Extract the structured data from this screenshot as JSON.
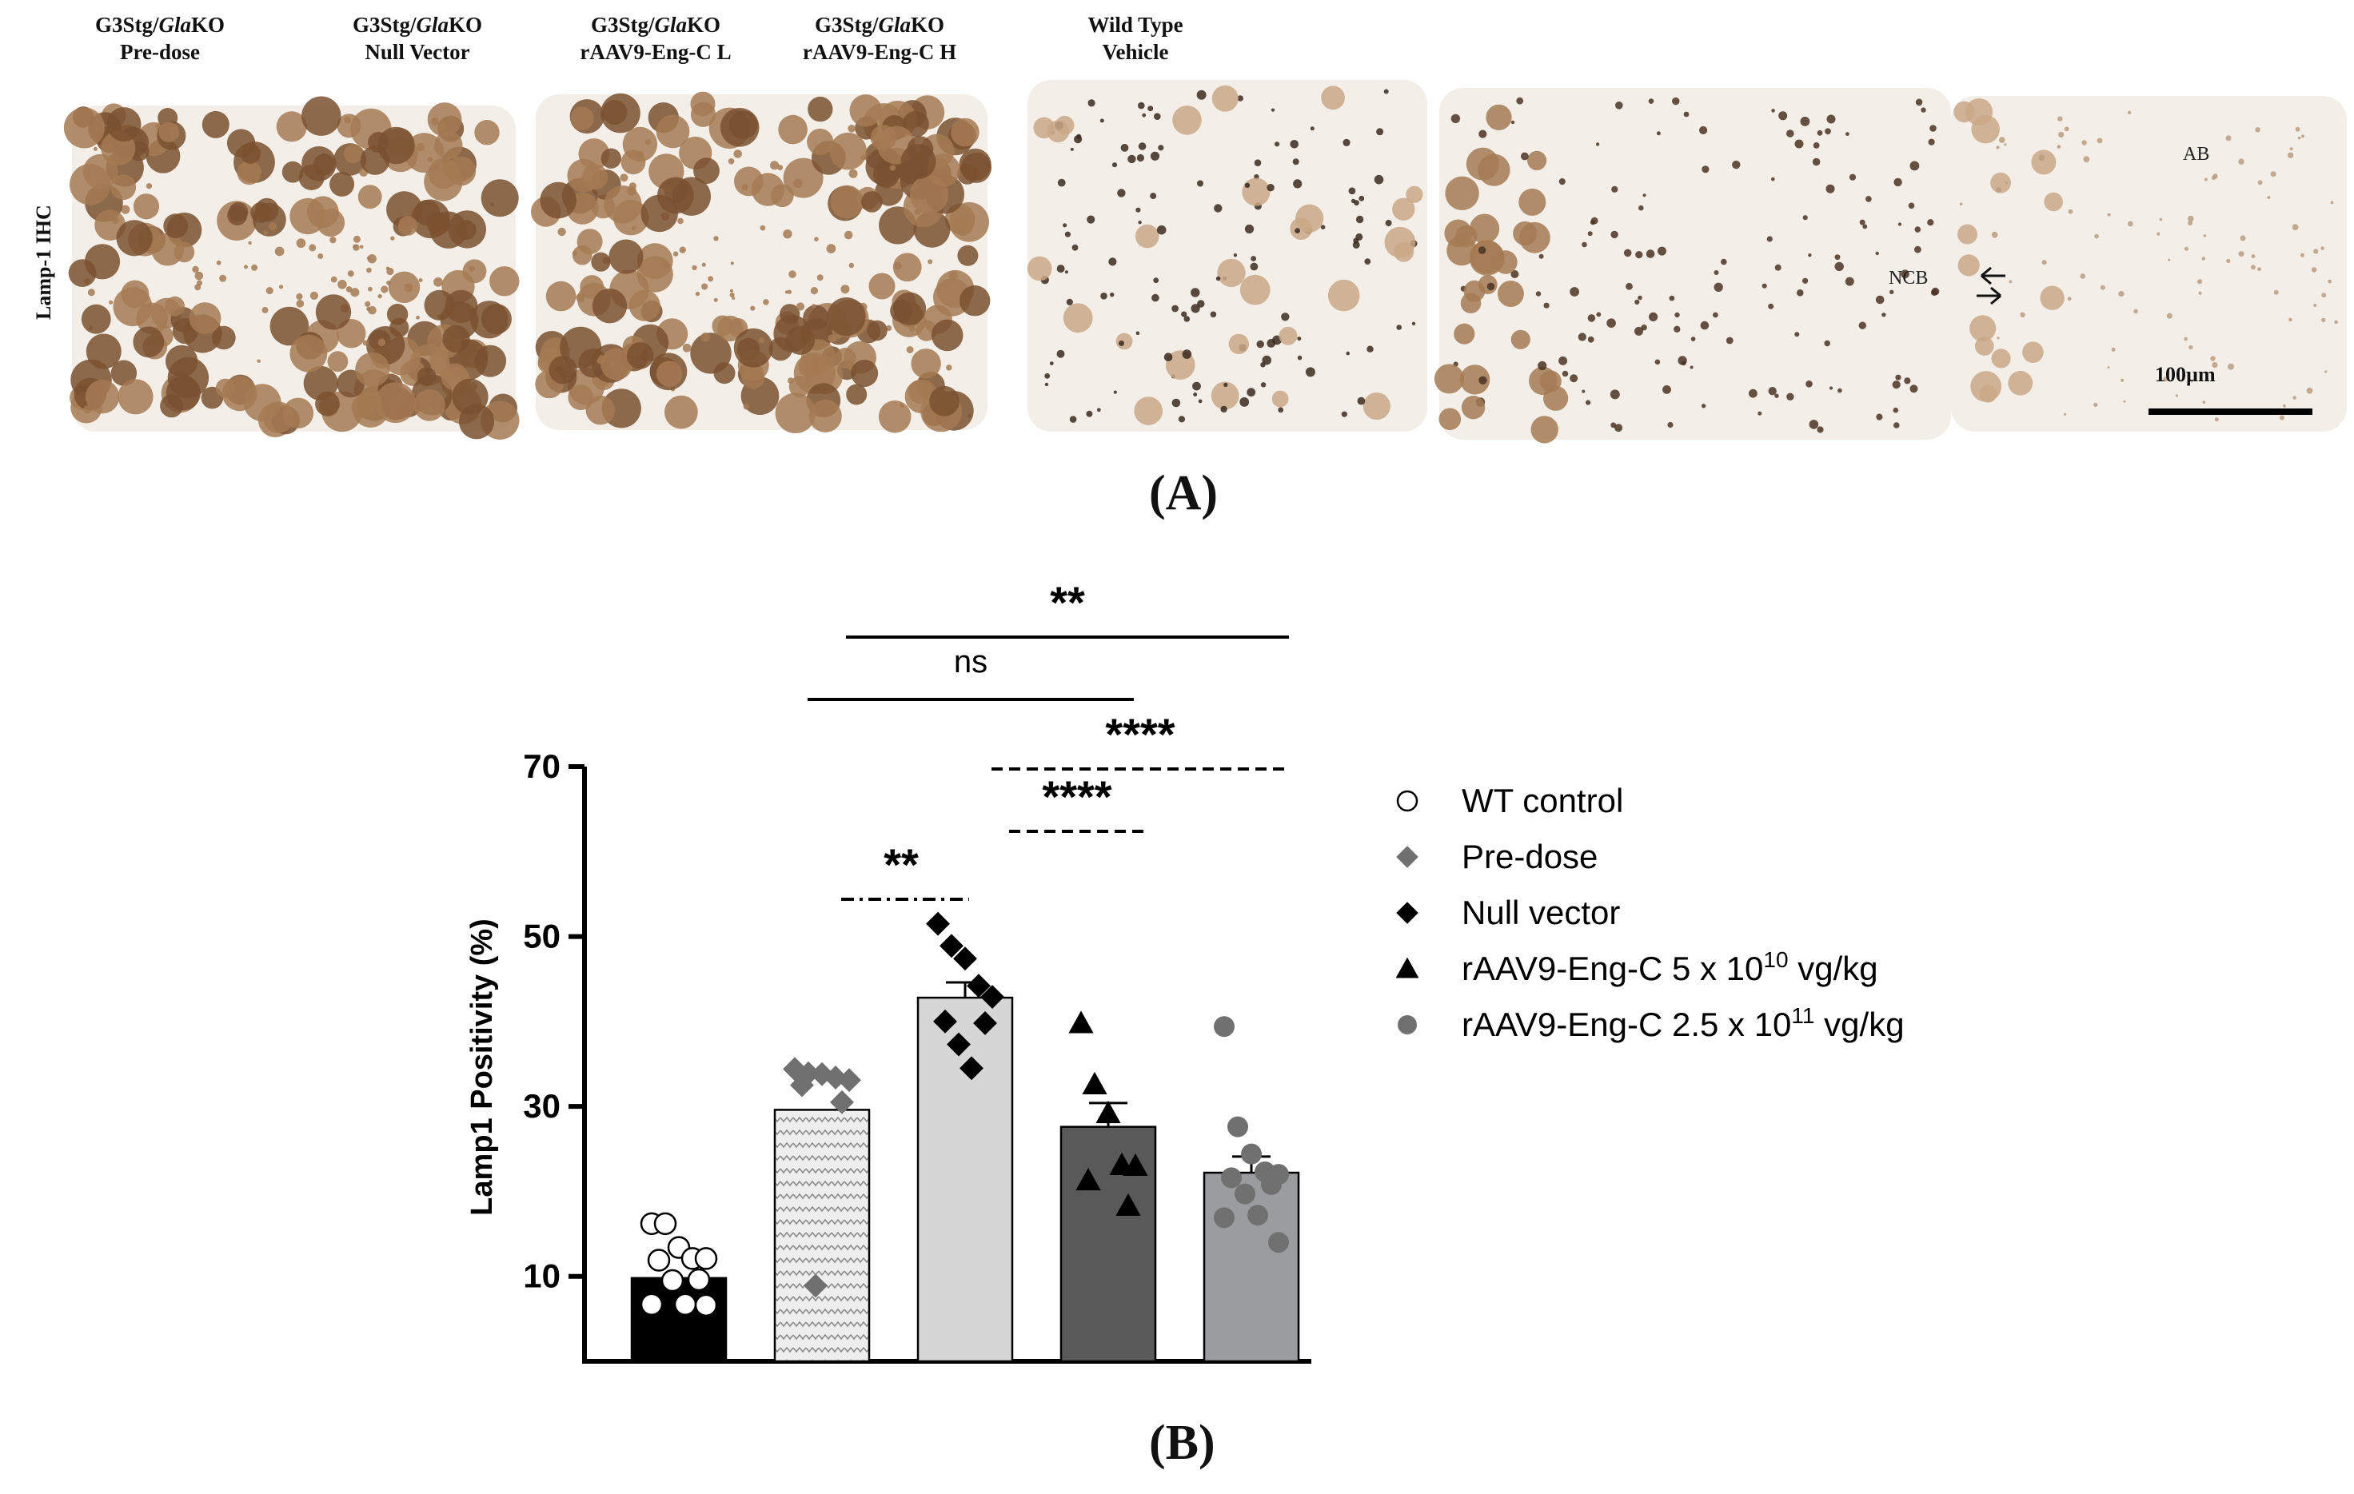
{
  "panel_a": {
    "letter": "(A)",
    "row_label": "Lamp-1 IHC",
    "panels": [
      {
        "line1_prefix": "G3Stg/",
        "line1_italic": "Gla",
        "line1_suffix": "KO",
        "line2": "Pre-dose",
        "stain": "heavy"
      },
      {
        "line1_prefix": "G3Stg/",
        "line1_italic": "Gla",
        "line1_suffix": "KO",
        "line2": "Null Vector",
        "stain": "heavy"
      },
      {
        "line1_prefix": "G3Stg/",
        "line1_italic": "Gla",
        "line1_suffix": "KO",
        "line2": "rAAV9-Eng-C L",
        "stain": "light"
      },
      {
        "line1_prefix": "G3Stg/",
        "line1_italic": "Gla",
        "line1_suffix": "KO",
        "line2": "rAAV9-Eng-C H",
        "stain": "medium"
      },
      {
        "line1_prefix": "Wild Type",
        "line1_italic": "",
        "line1_suffix": "",
        "line2": "Vehicle",
        "stain": "faint"
      }
    ],
    "annotations": {
      "ab": "AB",
      "ncb": "NCB",
      "scale_bar": "100µm"
    },
    "colors": {
      "tissue_bg": "#f3efe8",
      "dark_brown": "#7a5130",
      "mid_brown": "#a47a54",
      "light_brown": "#c9a887"
    }
  },
  "chart_data": {
    "type": "bar",
    "panel_letter": "(B)",
    "ylabel": "Lamp1 Positivity (%)",
    "ylim": [
      0,
      70
    ],
    "yticks": [
      10,
      30,
      50,
      70
    ],
    "categories": [
      "WT control",
      "Pre-dose",
      "Null vector",
      "rAAV9-Eng-C 5 x 10^10 vg/kg",
      "rAAV9-Eng-C 2.5 x 10^11 vg/kg"
    ],
    "bars": [
      {
        "name": "WT control",
        "value": 9.8,
        "sem": 0,
        "fill": "#000000",
        "pattern": "solid",
        "marker": "circle-open",
        "marker_color": "#ffffff",
        "points": [
          16.2,
          16.2,
          13.4,
          12.1,
          12.1,
          11.9,
          9.6,
          9.5,
          6.7,
          6.7,
          6.6
        ]
      },
      {
        "name": "Pre-dose",
        "value": 29.6,
        "sem": 0,
        "fill": "#e6e6e6",
        "pattern": "zigzag",
        "marker": "diamond",
        "marker_color": "#707070",
        "points": [
          34.4,
          33.9,
          33.8,
          33.4,
          33.1,
          32.5,
          30.5,
          8.9
        ]
      },
      {
        "name": "Null vector",
        "value": 42.8,
        "sem": 1.8,
        "fill": "#d6d6d6",
        "pattern": "solid",
        "marker": "diamond",
        "marker_color": "#000000",
        "points": [
          51.5,
          48.9,
          47.4,
          44.2,
          42.9,
          40.0,
          39.8,
          37.3,
          34.5
        ]
      },
      {
        "name": "rAAV9-Eng-C 5 x 10^10 vg/kg",
        "value": 27.6,
        "sem": 2.8,
        "fill": "#595959",
        "pattern": "solid",
        "marker": "triangle",
        "marker_color": "#000000",
        "points": [
          39.8,
          32.6,
          29.2,
          23.1,
          23.0,
          21.3,
          18.3
        ]
      },
      {
        "name": "rAAV9-Eng-C 2.5 x 10^11 vg/kg",
        "value": 22.2,
        "sem": 1.9,
        "fill": "#9b9ca0",
        "pattern": "solid",
        "marker": "circle",
        "marker_color": "#707070",
        "points": [
          39.4,
          27.6,
          24.4,
          22.3,
          22.0,
          21.6,
          20.8,
          19.7,
          17.2,
          16.9,
          14.0
        ]
      }
    ],
    "significance": [
      {
        "label": "**",
        "from": 1,
        "to": 4,
        "level": "top",
        "style": "solid"
      },
      {
        "label": "ns",
        "from": 1,
        "to": 3,
        "level": "second",
        "style": "solid"
      },
      {
        "label": "****",
        "from": 2,
        "to": 4,
        "level": "third",
        "style": "dashed"
      },
      {
        "label": "****",
        "from": 2,
        "to": 3,
        "level": "fourth",
        "style": "dashed"
      },
      {
        "label": "**",
        "from": 1,
        "to": 2,
        "level": "fifth",
        "style": "dashdot"
      }
    ],
    "legend": [
      {
        "marker": "circle-open",
        "color": "#ffffff",
        "text": "WT control",
        "base": "",
        "exp": "",
        "tail": ""
      },
      {
        "marker": "diamond",
        "color": "#707070",
        "text": "Pre-dose",
        "base": "",
        "exp": "",
        "tail": ""
      },
      {
        "marker": "diamond",
        "color": "#000000",
        "text": "Null vector",
        "base": "",
        "exp": "",
        "tail": ""
      },
      {
        "marker": "triangle",
        "color": "#000000",
        "text": "rAAV9-Eng-C 5 x 10",
        "base": "",
        "exp": "10",
        "tail": " vg/kg"
      },
      {
        "marker": "circle",
        "color": "#707070",
        "text": "rAAV9-Eng-C 2.5 x 10",
        "base": "",
        "exp": "11",
        "tail": " vg/kg"
      }
    ],
    "legend_position": "right"
  }
}
